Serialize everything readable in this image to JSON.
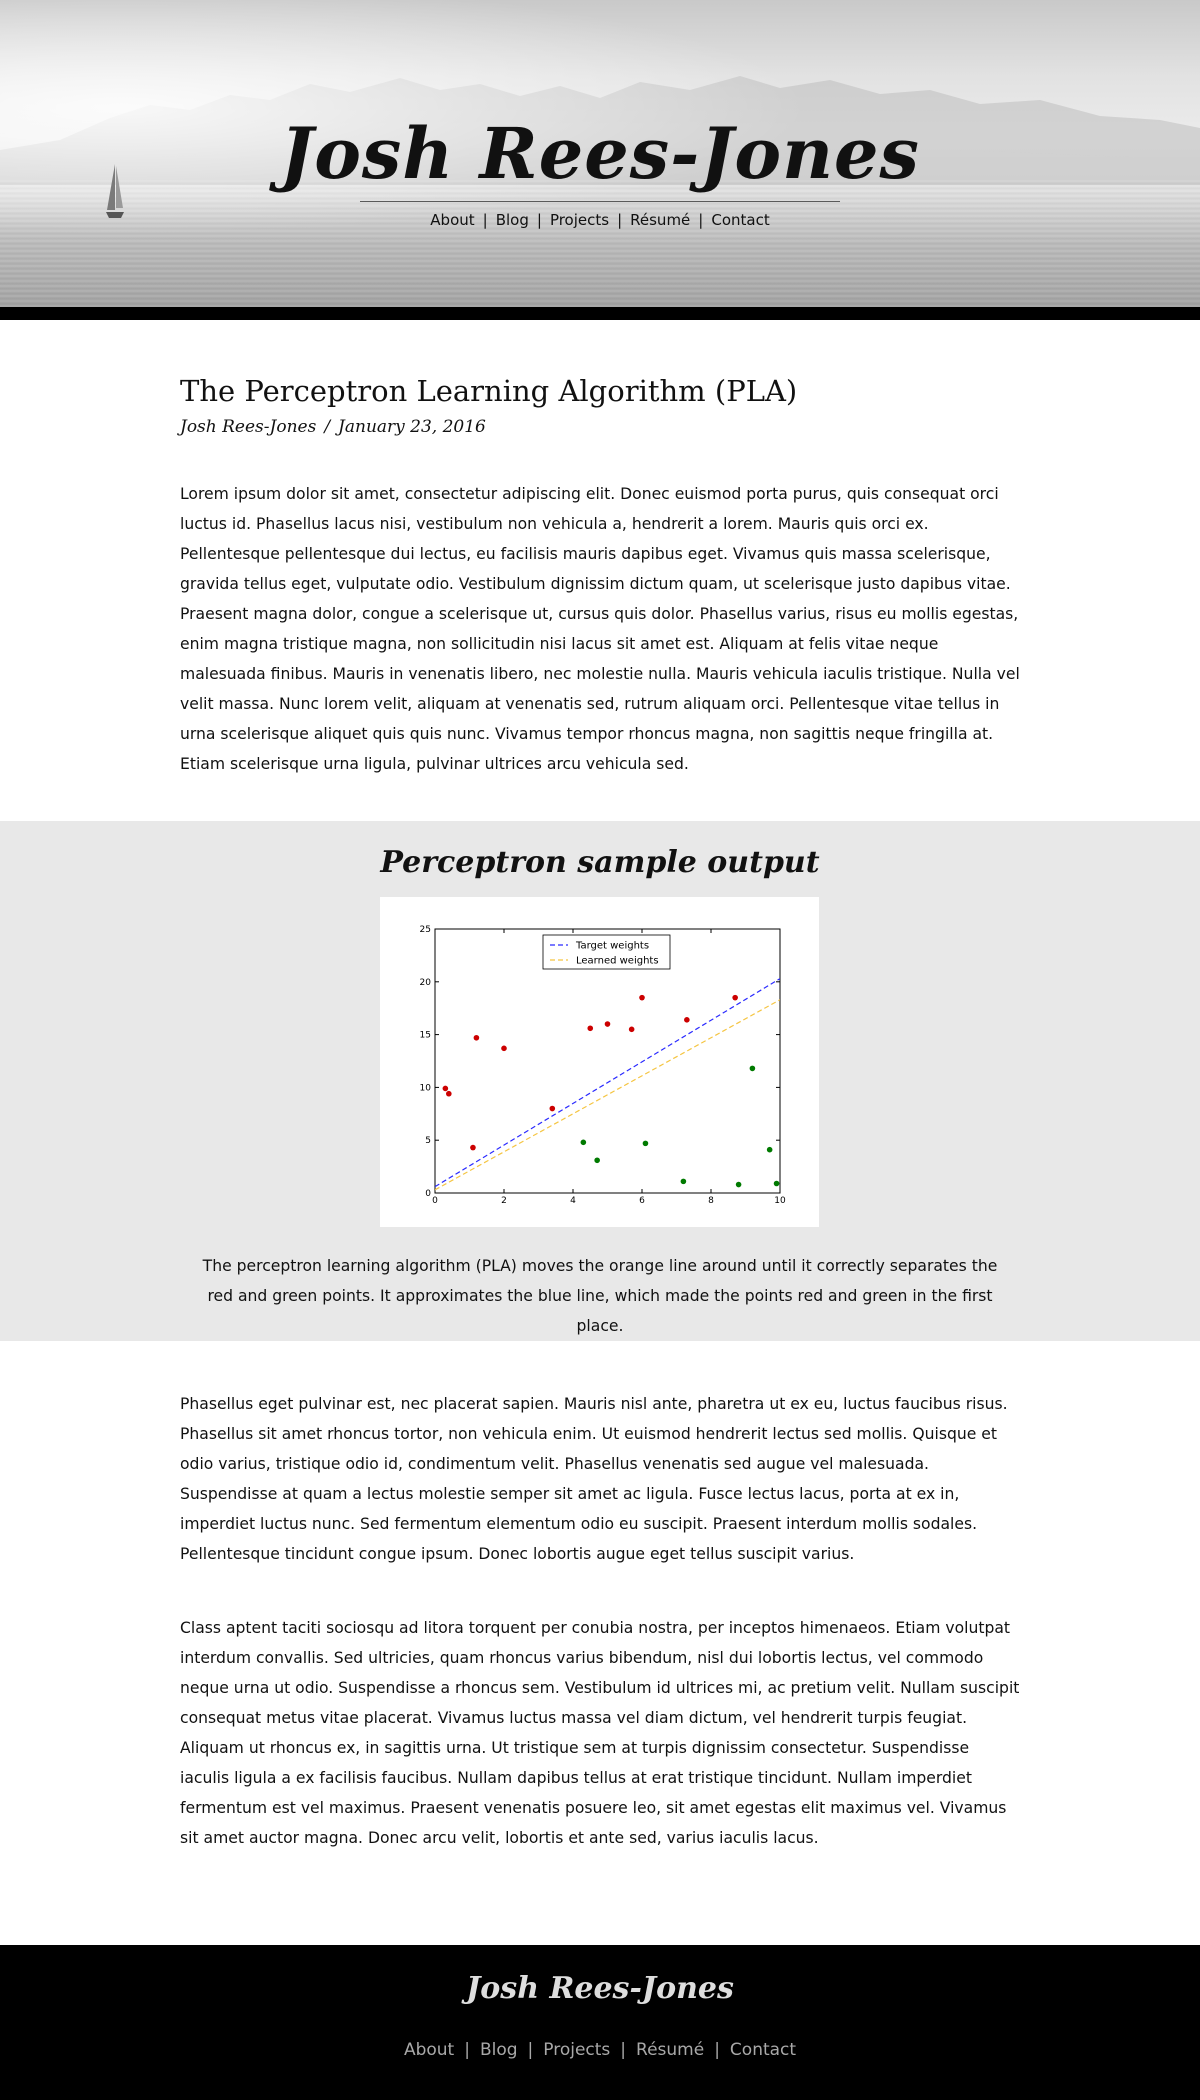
{
  "header": {
    "site_title": "Josh Rees-Jones",
    "nav": [
      "About",
      "Blog",
      "Projects",
      "Résumé",
      "Contact"
    ]
  },
  "post": {
    "title": "The Perceptron Learning Algorithm (PLA)",
    "author": "Josh Rees-Jones",
    "date": "January 23, 2016",
    "paragraph_1": "Lorem ipsum dolor sit amet, consectetur adipiscing elit. Donec euismod porta purus, quis consequat orci luctus id. Phasellus lacus nisi, vestibulum non vehicula a, hendrerit a lorem. Mauris quis orci ex. Pellentesque pellentesque dui lectus, eu facilisis mauris dapibus eget. Vivamus quis massa scelerisque, gravida tellus eget, vulputate odio. Vestibulum dignissim dictum quam, ut scelerisque justo dapibus vitae. Praesent magna dolor, congue a scelerisque ut, cursus quis dolor. Phasellus varius, risus eu mollis egestas, enim magna tristique magna, non sollicitudin nisi lacus sit amet est. Aliquam at felis vitae neque malesuada finibus. Mauris in venenatis libero, nec molestie nulla. Mauris vehicula iaculis tristique. Nulla vel velit massa. Nunc lorem velit, aliquam at venenatis sed, rutrum aliquam orci. Pellentesque vitae tellus in urna scelerisque aliquet quis quis nunc. Vivamus tempor rhoncus magna, non sagittis neque fringilla at. Etiam scelerisque urna ligula, pulvinar ultrices arcu vehicula sed.",
    "figure_title": "Perceptron sample output",
    "figure_caption": "The perceptron learning algorithm (PLA) moves the orange line around until it correctly separates the red and green points. It approximates the blue line, which made the points red and green in the first place.",
    "paragraph_2": "Phasellus eget pulvinar est, nec placerat sapien. Mauris nisl ante, pharetra ut ex eu, luctus faucibus risus. Phasellus sit amet rhoncus tortor, non vehicula enim. Ut euismod hendrerit lectus sed mollis. Quisque et odio varius, tristique odio id, condimentum velit. Phasellus venenatis sed augue vel malesuada. Suspendisse at quam a lectus molestie semper sit amet ac ligula. Fusce lectus lacus, porta at ex in, imperdiet luctus nunc. Sed fermentum elementum odio eu suscipit. Praesent interdum mollis sodales. Pellentesque tincidunt congue ipsum. Donec lobortis augue eget tellus suscipit varius.",
    "paragraph_3": "Class aptent taciti sociosqu ad litora torquent per conubia nostra, per inceptos himenaeos. Etiam volutpat interdum convallis. Sed ultricies, quam rhoncus varius bibendum, nisl dui lobortis lectus, vel commodo neque urna ut odio. Suspendisse a rhoncus sem. Vestibulum id ultrices mi, ac pretium velit. Nullam suscipit consequat metus vitae placerat. Vivamus luctus massa vel diam dictum, vel hendrerit turpis feugiat. Aliquam ut rhoncus ex, in sagittis urna. Ut tristique sem at turpis dignissim consectetur. Suspendisse iaculis ligula a ex facilisis faucibus. Nullam dapibus tellus at erat tristique tincidunt. Nullam imperdiet fermentum est vel maximus. Praesent venenatis posuere leo, sit amet egestas elit maximus vel. Vivamus sit amet auctor magna. Donec arcu velit, lobortis et ante sed, varius iaculis lacus."
  },
  "footer": {
    "site_title": "Josh Rees-Jones",
    "nav": [
      "About",
      "Blog",
      "Projects",
      "Résumé",
      "Contact"
    ]
  },
  "colors": {
    "red_points": "#cc0000",
    "green_points": "#007a00",
    "target_line": "#2a2aff",
    "learned_line": "#f5c542"
  },
  "chart_data": {
    "type": "scatter",
    "xlim": [
      0,
      10
    ],
    "ylim": [
      0,
      25
    ],
    "xticks": [
      0,
      2,
      4,
      6,
      8,
      10
    ],
    "yticks": [
      0,
      5,
      10,
      15,
      20,
      25
    ],
    "legend_position": "top-center",
    "series": [
      {
        "name": "Target weights",
        "kind": "line",
        "style": "dashed",
        "color": "#2a2aff",
        "points": [
          [
            0,
            0.6
          ],
          [
            10,
            20.3
          ]
        ]
      },
      {
        "name": "Learned weights",
        "kind": "line",
        "style": "dashed",
        "color": "#f5c542",
        "points": [
          [
            0,
            0.3
          ],
          [
            10,
            18.3
          ]
        ]
      },
      {
        "kind": "points",
        "color": "#cc0000",
        "points": [
          [
            0.3,
            9.9
          ],
          [
            0.4,
            9.4
          ],
          [
            1.1,
            4.3
          ],
          [
            1.2,
            14.7
          ],
          [
            2.0,
            13.7
          ],
          [
            3.4,
            8.0
          ],
          [
            4.5,
            15.6
          ],
          [
            5.0,
            16.0
          ],
          [
            5.7,
            15.5
          ],
          [
            6.0,
            18.5
          ],
          [
            7.3,
            16.4
          ],
          [
            8.7,
            18.5
          ]
        ]
      },
      {
        "kind": "points",
        "color": "#007a00",
        "points": [
          [
            4.3,
            4.8
          ],
          [
            4.7,
            3.1
          ],
          [
            6.1,
            4.7
          ],
          [
            7.2,
            1.1
          ],
          [
            8.8,
            0.8
          ],
          [
            9.2,
            11.8
          ],
          [
            9.7,
            4.1
          ],
          [
            9.9,
            0.9
          ]
        ]
      }
    ]
  }
}
